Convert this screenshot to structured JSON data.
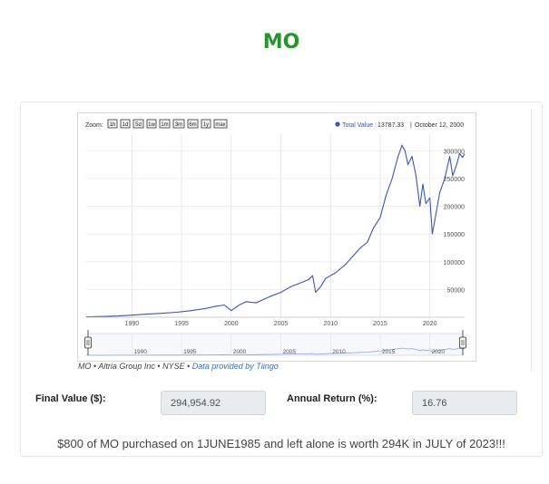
{
  "page": {
    "title": "MO",
    "summary": "$800 of MO purchased on 1JUNE1985 and left alone is worth 294K in JULY of 2023!!!"
  },
  "fields": {
    "final_value_label": "Final Value ($):",
    "final_value": "294,954.92",
    "annual_return_label": "Annual Return (%):",
    "annual_return": "16.76"
  },
  "source": {
    "ticker": "MO",
    "company": "Altria Group Inc",
    "exchange": "NYSE",
    "provider": "Data provided by Tiingo",
    "separator": "•"
  },
  "chart_data": {
    "type": "line",
    "title": "",
    "zoom_label": "Zoom:",
    "zoom_buttons": [
      "1h",
      "1d",
      "5d",
      "1w",
      "1m",
      "3m",
      "6m",
      "1y",
      "max"
    ],
    "legend": {
      "series_label": "Total Value :",
      "value": "13787.33",
      "date": "October 12, 2000",
      "placement": "top-right"
    },
    "xlabel": "",
    "ylabel": "",
    "xlim": [
      1985.4,
      2023.5
    ],
    "ylim": [
      0,
      330000
    ],
    "y_ticks": [
      50000,
      100000,
      150000,
      200000,
      250000,
      300000
    ],
    "y_tick_labels": [
      "50000",
      "100000",
      "150000",
      "200000",
      "250000",
      "300000"
    ],
    "x_ticks": [
      1990,
      1995,
      2000,
      2005,
      2010,
      2015,
      2020
    ],
    "x_tick_labels": [
      "1990",
      "1995",
      "2000",
      "2005",
      "2010",
      "2015",
      "2020"
    ],
    "navigator_ticks": [
      "1990",
      "1995",
      "2000",
      "2005",
      "2010",
      "2015",
      "2020"
    ],
    "series": [
      {
        "name": "Total Value",
        "color": "#3b55b8",
        "x": [
          1985.4,
          1987.0,
          1988.5,
          1990.0,
          1991.5,
          1993.0,
          1994.5,
          1996.0,
          1997.5,
          1998.5,
          1999.3,
          2000.0,
          2000.8,
          2001.5,
          2002.5,
          2003.0,
          2004.0,
          2005.0,
          2006.0,
          2007.0,
          2007.8,
          2008.2,
          2008.5,
          2009.0,
          2009.5,
          2010.5,
          2011.5,
          2012.5,
          2013.0,
          2013.7,
          2014.3,
          2015.0,
          2015.6,
          2016.2,
          2016.8,
          2017.2,
          2017.5,
          2017.8,
          2018.2,
          2018.6,
          2019.0,
          2019.3,
          2019.6,
          2020.0,
          2020.25,
          2020.6,
          2021.0,
          2021.5,
          2022.0,
          2022.3,
          2022.7,
          2023.0,
          2023.3,
          2023.5
        ],
        "values": [
          800,
          1300,
          2200,
          3800,
          5500,
          7000,
          9000,
          12000,
          16000,
          20000,
          22000,
          12000,
          22000,
          28000,
          26000,
          30000,
          38000,
          45000,
          55000,
          62000,
          68000,
          75000,
          45000,
          55000,
          70000,
          80000,
          95000,
          115000,
          125000,
          135000,
          160000,
          180000,
          220000,
          250000,
          290000,
          310000,
          300000,
          275000,
          290000,
          255000,
          200000,
          240000,
          205000,
          215000,
          150000,
          185000,
          225000,
          250000,
          290000,
          255000,
          275000,
          295000,
          288000,
          294955
        ]
      }
    ]
  }
}
